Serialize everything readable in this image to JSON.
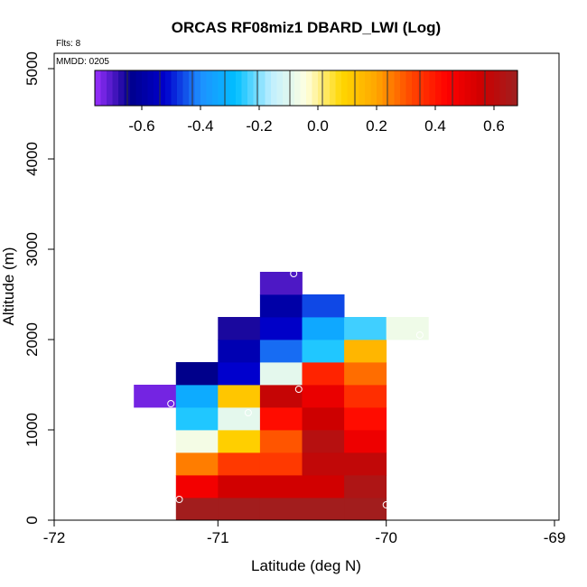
{
  "chart_data": {
    "type": "heatmap",
    "title": "ORCAS RF08miz1 DBARD_LWI (Log)",
    "annotations": [
      "Flts: 8",
      "MMDD: 0205"
    ],
    "xlabel": "Latitude (deg N)",
    "ylabel": "Altitude (m)",
    "xlim": [
      -72,
      -69
    ],
    "ylim": [
      0,
      5200
    ],
    "x_ticks": [
      -72,
      -71,
      -70,
      -69
    ],
    "x_tick_labels": [
      "-72",
      "-71",
      "-70",
      "-69"
    ],
    "y_ticks": [
      0,
      1000,
      2000,
      3000,
      4000,
      5000
    ],
    "y_tick_labels": [
      "0",
      "1000",
      "2000",
      "3000",
      "4000",
      "5000"
    ],
    "grid": false,
    "colorbar": {
      "range": [
        -0.76,
        0.68
      ],
      "ticks": [
        -0.6,
        -0.4,
        -0.2,
        0.0,
        0.2,
        0.4,
        0.6
      ],
      "tick_labels": [
        "-0.6",
        "-0.4",
        "-0.2",
        "0.0",
        "0.2",
        "0.4",
        "0.6"
      ],
      "placement": "top, inside plot",
      "colors": [
        "#9b30ff",
        "#00008b",
        "#0000cd",
        "#1e90ff",
        "#00bfff",
        "#bfefff",
        "#ffffe0",
        "#ffd700",
        "#ffa500",
        "#ff4500",
        "#ff0000",
        "#cd0000",
        "#9e2020"
      ]
    },
    "bin_width_deg": 0.25,
    "bin_height_m": 250,
    "cells": [
      {
        "x": -71.125,
        "y": 125,
        "value": 0.67
      },
      {
        "x": -70.875,
        "y": 125,
        "value": 0.67
      },
      {
        "x": -70.625,
        "y": 125,
        "value": 0.67
      },
      {
        "x": -70.375,
        "y": 125,
        "value": 0.67
      },
      {
        "x": -70.125,
        "y": 125,
        "value": 0.67
      },
      {
        "x": -71.125,
        "y": 375,
        "value": 0.47
      },
      {
        "x": -70.875,
        "y": 375,
        "value": 0.55
      },
      {
        "x": -70.625,
        "y": 375,
        "value": 0.55
      },
      {
        "x": -70.375,
        "y": 375,
        "value": 0.55
      },
      {
        "x": -70.125,
        "y": 375,
        "value": 0.64
      },
      {
        "x": -71.125,
        "y": 625,
        "value": 0.25
      },
      {
        "x": -70.875,
        "y": 625,
        "value": 0.34
      },
      {
        "x": -70.625,
        "y": 625,
        "value": 0.34
      },
      {
        "x": -70.375,
        "y": 625,
        "value": 0.59
      },
      {
        "x": -70.125,
        "y": 625,
        "value": 0.59
      },
      {
        "x": -71.125,
        "y": 875,
        "value": -0.06
      },
      {
        "x": -70.875,
        "y": 875,
        "value": 0.1
      },
      {
        "x": -70.625,
        "y": 875,
        "value": 0.3
      },
      {
        "x": -70.375,
        "y": 875,
        "value": 0.62
      },
      {
        "x": -70.125,
        "y": 875,
        "value": 0.48
      },
      {
        "x": -71.125,
        "y": 1125,
        "value": -0.26
      },
      {
        "x": -70.875,
        "y": 1125,
        "value": -0.09
      },
      {
        "x": -70.625,
        "y": 1125,
        "value": 0.42
      },
      {
        "x": -70.375,
        "y": 1125,
        "value": 0.56
      },
      {
        "x": -70.125,
        "y": 1125,
        "value": 0.42
      },
      {
        "x": -71.375,
        "y": 1375,
        "value": -0.73
      },
      {
        "x": -71.125,
        "y": 1375,
        "value": -0.33
      },
      {
        "x": -70.875,
        "y": 1375,
        "value": 0.12
      },
      {
        "x": -70.625,
        "y": 1375,
        "value": 0.58
      },
      {
        "x": -70.375,
        "y": 1375,
        "value": 0.49
      },
      {
        "x": -70.125,
        "y": 1375,
        "value": 0.36
      },
      {
        "x": -71.125,
        "y": 1625,
        "value": -0.64
      },
      {
        "x": -70.875,
        "y": 1625,
        "value": -0.52
      },
      {
        "x": -70.625,
        "y": 1625,
        "value": -0.09
      },
      {
        "x": -70.375,
        "y": 1625,
        "value": 0.38
      },
      {
        "x": -70.125,
        "y": 1625,
        "value": 0.27
      },
      {
        "x": -70.875,
        "y": 1875,
        "value": -0.57
      },
      {
        "x": -70.625,
        "y": 1875,
        "value": -0.43
      },
      {
        "x": -70.375,
        "y": 1875,
        "value": -0.26
      },
      {
        "x": -70.125,
        "y": 1875,
        "value": 0.16
      },
      {
        "x": -70.875,
        "y": 2125,
        "value": -0.66
      },
      {
        "x": -70.625,
        "y": 2125,
        "value": -0.53
      },
      {
        "x": -70.375,
        "y": 2125,
        "value": -0.34
      },
      {
        "x": -70.125,
        "y": 2125,
        "value": -0.24
      },
      {
        "x": -69.875,
        "y": 2125,
        "value": -0.07
      },
      {
        "x": -70.625,
        "y": 2375,
        "value": -0.59
      },
      {
        "x": -70.375,
        "y": 2375,
        "value": -0.46
      },
      {
        "x": -70.625,
        "y": 2625,
        "value": -0.7
      }
    ],
    "markers": [
      {
        "x": -71.23,
        "y": 230
      },
      {
        "x": -70.0,
        "y": 170
      },
      {
        "x": -71.28,
        "y": 1290
      },
      {
        "x": -70.82,
        "y": 1190
      },
      {
        "x": -70.52,
        "y": 1450
      },
      {
        "x": -69.8,
        "y": 2050
      },
      {
        "x": -70.55,
        "y": 2730
      }
    ]
  }
}
